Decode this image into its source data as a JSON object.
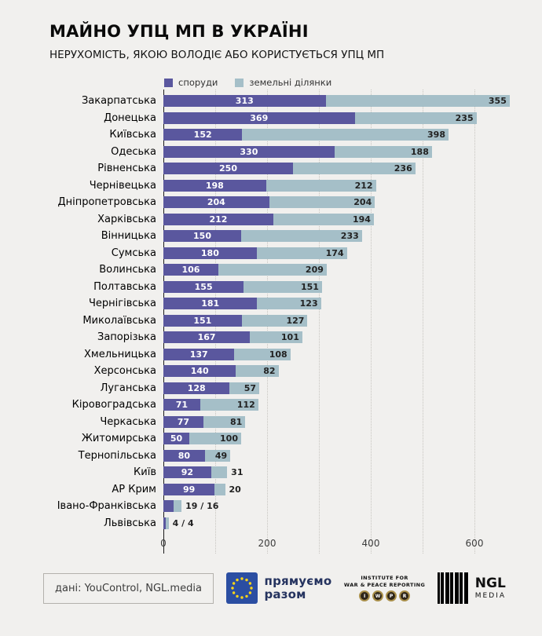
{
  "header": {
    "title": "МАЙНО УПЦ МП В УКРАЇНІ",
    "subtitle": "НЕРУХОМІСТЬ, ЯКОЮ ВОЛОДІЄ АБО КОРИСТУЄТЬСЯ УПЦ МП"
  },
  "legend": [
    {
      "label": "споруди",
      "color": "#5a579e"
    },
    {
      "label": "земельні ділянки",
      "color": "#a5bfc8"
    }
  ],
  "chart_data": {
    "type": "bar",
    "orientation": "horizontal",
    "stacked": true,
    "title": "МАЙНО УПЦ МП В УКРАЇНІ",
    "subtitle": "НЕРУХОМІСТЬ, ЯКОЮ ВОЛОДІЄ АБО КОРИСТУЄТЬСЯ УПЦ МП",
    "categories": [
      "Закарпатська",
      "Донецька",
      "Київська",
      "Одеська",
      "Рівненська",
      "Чернівецька",
      "Дніпропетровська",
      "Харківська",
      "Вінницька",
      "Сумська",
      "Волинська",
      "Полтавська",
      "Чернігівська",
      "Миколаївська",
      "Запорізька",
      "Хмельницька",
      "Херсонська",
      "Луганська",
      "Кіровоградська",
      "Черкаська",
      "Житомирська",
      "Тернопільська",
      "Київ",
      "АР Крим",
      "Івано-Франківська",
      "Львівська"
    ],
    "series": [
      {
        "name": "споруди",
        "color": "#5a579e",
        "values": [
          313,
          369,
          152,
          330,
          250,
          198,
          204,
          212,
          150,
          180,
          106,
          155,
          181,
          151,
          167,
          137,
          140,
          128,
          71,
          77,
          50,
          80,
          92,
          99,
          19,
          4
        ]
      },
      {
        "name": "земельні ділянки",
        "color": "#a5bfc8",
        "values": [
          355,
          235,
          398,
          188,
          236,
          212,
          204,
          194,
          233,
          174,
          209,
          151,
          123,
          127,
          101,
          108,
          82,
          57,
          112,
          81,
          100,
          49,
          31,
          20,
          16,
          4
        ]
      }
    ],
    "x_ticks": [
      0,
      200,
      400,
      600
    ],
    "xlim": [
      0,
      680
    ],
    "grid_interval": 100,
    "grid": true,
    "legend_position": "top",
    "outside_label_rows": [
      "Івано-Франківська",
      "Львівська"
    ],
    "outside_label_separator": " / "
  },
  "footer": {
    "source": "дані: YouControl, NGL.media",
    "eu": {
      "line1": "прямуємо",
      "line2": "разом"
    },
    "iwpr": {
      "line1": "INSTITUTE FOR",
      "line2": "WAR & PEACE REPORTING",
      "medals": [
        "I",
        "W",
        "P",
        "R"
      ]
    },
    "ngl": {
      "name": "NGL",
      "sub": "MEDIA"
    }
  }
}
